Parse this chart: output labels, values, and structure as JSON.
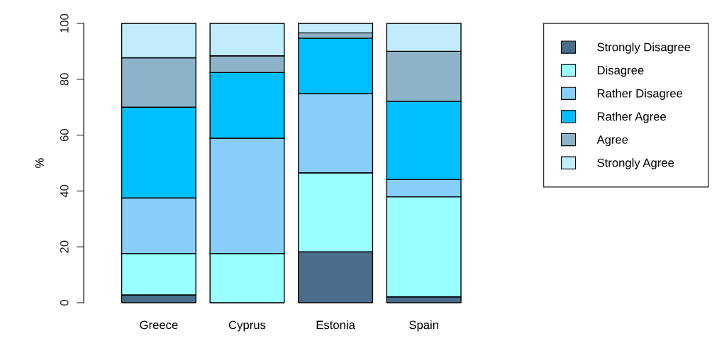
{
  "chart_data": {
    "type": "bar",
    "stacked": true,
    "ylabel": "%",
    "categories": [
      "Greece",
      "Cyprus",
      "Estonia",
      "Spain"
    ],
    "series": [
      {
        "name": "Strongly Disagree",
        "color": "#4a6d8c",
        "values": [
          2.8,
          0,
          18.2,
          2.1
        ]
      },
      {
        "name": "Disagree",
        "color": "#99ffff",
        "values": [
          14.8,
          17.6,
          28.3,
          35.8
        ]
      },
      {
        "name": "Rather Disagree",
        "color": "#87cefa",
        "values": [
          19.9,
          41.3,
          28.4,
          6.2
        ]
      },
      {
        "name": "Rather Agree",
        "color": "#00bfff",
        "values": [
          32.5,
          23.5,
          19.8,
          28.0
        ]
      },
      {
        "name": "Agree",
        "color": "#8db3c9",
        "values": [
          17.7,
          6.0,
          1.9,
          17.9
        ]
      },
      {
        "name": "Strongly Agree",
        "color": "#c1ecfc",
        "values": [
          12.3,
          11.6,
          3.4,
          10.0
        ]
      }
    ],
    "ylim": [
      0,
      100
    ],
    "yticks": [
      0,
      20,
      40,
      60,
      80,
      100
    ],
    "grid": false,
    "legend": "right"
  }
}
